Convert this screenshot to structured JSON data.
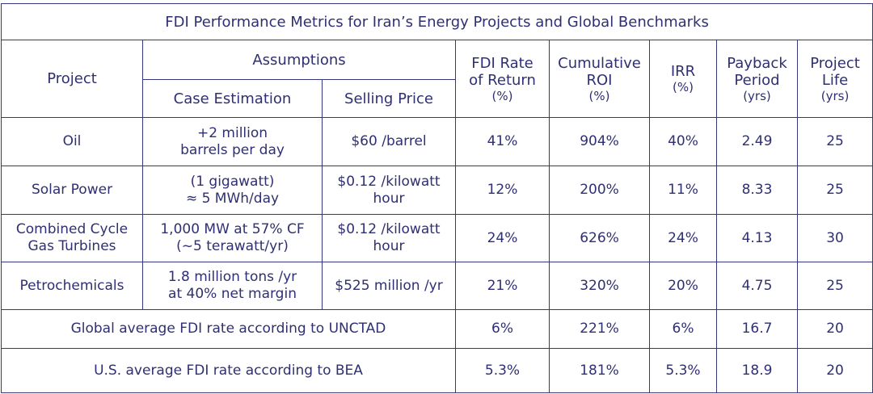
{
  "table": {
    "title": "FDI Performance Metrics for Iran’s Energy Projects and Global Benchmarks",
    "headers": {
      "project": "Project",
      "assumptions": "Assumptions",
      "case_estimation": "Case Estimation",
      "selling_price": "Selling Price",
      "fdi_rate": [
        "FDI Rate",
        "of Return",
        "(%)"
      ],
      "cumulative_roi": [
        "Cumulative",
        "ROI",
        "(%)"
      ],
      "irr": [
        "IRR",
        "(%)"
      ],
      "payback": [
        "Payback",
        "Period",
        "(yrs)"
      ],
      "life": [
        "Project",
        "Life",
        "(yrs)"
      ]
    },
    "rows": [
      {
        "project": [
          "Oil"
        ],
        "case": [
          "+2 million",
          "barrels per day"
        ],
        "price": [
          "$60 /barrel"
        ],
        "fdi": "41%",
        "roi": "904%",
        "irr": "40%",
        "payback": "2.49",
        "life": "25"
      },
      {
        "project": [
          "Solar Power"
        ],
        "case": [
          "(1 gigawatt)",
          "≈ 5 MWh/day"
        ],
        "price": [
          "$0.12 /kilowatt",
          "hour"
        ],
        "fdi": "12%",
        "roi": "200%",
        "irr": "11%",
        "payback": "8.33",
        "life": "25"
      },
      {
        "project": [
          "Combined Cycle",
          "Gas Turbines"
        ],
        "case": [
          "1,000 MW at 57% CF",
          "(~5 terawatt/yr)"
        ],
        "price": [
          "$0.12 /kilowatt",
          "hour"
        ],
        "fdi": "24%",
        "roi": "626%",
        "irr": "24%",
        "payback": "4.13",
        "life": "30"
      },
      {
        "project": [
          "Petrochemicals"
        ],
        "case": [
          "1.8 million tons /yr",
          "at 40% net margin"
        ],
        "price": [
          "$525 million /yr"
        ],
        "fdi": "21%",
        "roi": "320%",
        "irr": "20%",
        "payback": "4.75",
        "life": "25"
      }
    ],
    "benchmarks": [
      {
        "label": "Global average FDI rate according to UNCTAD",
        "fdi": "6%",
        "roi": "221%",
        "irr": "6%",
        "payback": "16.7",
        "life": "20"
      },
      {
        "label": "U.S. average FDI rate according to BEA",
        "fdi": "5.3%",
        "roi": "181%",
        "irr": "5.3%",
        "payback": "18.9",
        "life": "20"
      }
    ]
  }
}
